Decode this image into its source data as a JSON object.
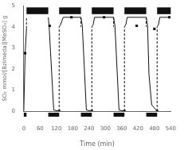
{
  "chart_data": {
    "type": "line",
    "xlabel": "Time (min)",
    "ylabel": "SO₂ mmol/[BzImeda][MeSO₃] g",
    "xlim": [
      0,
      540
    ],
    "ylim": [
      0,
      5
    ],
    "xticks": [
      0,
      60,
      120,
      180,
      240,
      300,
      360,
      420,
      480,
      540
    ],
    "yticks": [
      0,
      1,
      2,
      3,
      4,
      5
    ],
    "grid": false,
    "series": [
      {
        "type": "line",
        "line_style": "solid",
        "color": "#111111",
        "x": [
          0,
          5,
          10
        ],
        "values": [
          0.0,
          2.75,
          3.92
        ]
      },
      {
        "type": "line",
        "line_style": "solid",
        "color": "#111111",
        "x": [
          90,
          93,
          110,
          130
        ],
        "values": [
          4.45,
          4.05,
          0.05,
          0.0
        ]
      },
      {
        "type": "line",
        "line_style": "solid",
        "color": "#111111",
        "x": [
          130,
          135,
          145,
          210
        ],
        "values": [
          4.0,
          4.1,
          4.45,
          4.45
        ]
      },
      {
        "type": "line",
        "line_style": "solid",
        "color": "#111111",
        "x": [
          210,
          215,
          230,
          250
        ],
        "values": [
          4.45,
          4.05,
          0.05,
          0.0
        ]
      },
      {
        "type": "line",
        "line_style": "solid",
        "color": "#111111",
        "x": [
          250,
          255,
          260,
          330
        ],
        "values": [
          4.0,
          4.1,
          4.45,
          4.45
        ]
      },
      {
        "type": "line",
        "line_style": "solid",
        "color": "#111111",
        "x": [
          330,
          335,
          350,
          370
        ],
        "values": [
          4.45,
          4.05,
          0.05,
          0.0
        ]
      },
      {
        "type": "line",
        "line_style": "solid",
        "color": "#111111",
        "x": [
          370,
          375,
          380,
          450
        ],
        "values": [
          4.0,
          4.1,
          4.45,
          4.45
        ]
      },
      {
        "type": "line",
        "line_style": "solid",
        "color": "#111111",
        "x": [
          450,
          455,
          460,
          470,
          490
        ],
        "values": [
          4.45,
          4.05,
          1.75,
          0.3,
          0.0
        ]
      },
      {
        "type": "line",
        "line_style": "solid",
        "color": "#111111",
        "x": [
          490,
          495,
          500,
          540
        ],
        "values": [
          4.0,
          4.1,
          4.45,
          4.45
        ]
      },
      {
        "type": "line",
        "line_style": "dashed",
        "color": "#111111",
        "x": [
          10,
          10
        ],
        "values": [
          3.92,
          4.45
        ]
      },
      {
        "type": "line",
        "line_style": "dashed",
        "color": "#111111",
        "x": [
          130,
          130
        ],
        "values": [
          0.0,
          4.0
        ]
      },
      {
        "type": "line",
        "line_style": "dashed",
        "color": "#111111",
        "x": [
          210,
          210
        ],
        "values": [
          4.45,
          4.0
        ]
      },
      {
        "type": "line",
        "line_style": "dashed",
        "color": "#111111",
        "x": [
          250,
          250
        ],
        "values": [
          0.0,
          4.0
        ]
      },
      {
        "type": "line",
        "line_style": "dashed",
        "color": "#111111",
        "x": [
          330,
          330
        ],
        "values": [
          4.45,
          4.0
        ]
      },
      {
        "type": "line",
        "line_style": "dashed",
        "color": "#111111",
        "x": [
          370,
          370
        ],
        "values": [
          0.0,
          4.0
        ]
      },
      {
        "type": "line",
        "line_style": "dashed",
        "color": "#111111",
        "x": [
          450,
          450
        ],
        "values": [
          4.45,
          4.0
        ]
      },
      {
        "type": "line",
        "line_style": "dashed",
        "color": "#111111",
        "x": [
          490,
          490
        ],
        "values": [
          0.0,
          4.0
        ]
      },
      {
        "type": "scatter",
        "marker": "square",
        "color": "#111111",
        "x": [
          5,
          95,
          130,
          175,
          250,
          295,
          370,
          415,
          480,
          490,
          535
        ],
        "values": [
          2.75,
          4.05,
          0.0,
          4.45,
          0.0,
          4.45,
          0.0,
          4.05,
          3.9,
          0.0,
          4.45
        ]
      }
    ],
    "top_bars": {
      "intervals": [
        [
          10,
          90
        ],
        [
          130,
          210
        ],
        [
          250,
          330
        ],
        [
          370,
          450
        ],
        [
          490,
          540
        ]
      ],
      "y": 4.6,
      "height": 0.32,
      "color": "#111111"
    },
    "bottom_bars": {
      "intervals": [
        [
          0,
          10
        ],
        [
          90,
          130
        ],
        [
          210,
          250
        ],
        [
          330,
          370
        ],
        [
          450,
          490
        ]
      ],
      "color": "#111111"
    }
  }
}
